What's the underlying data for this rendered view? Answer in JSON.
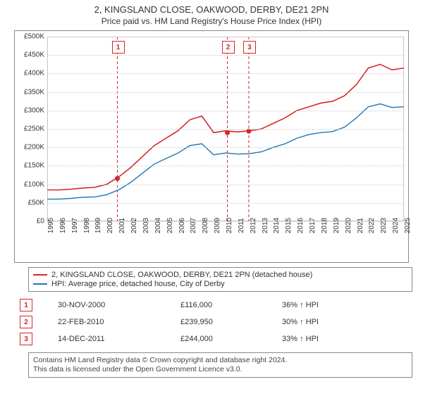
{
  "title_line1": "2, KINGSLAND CLOSE, OAKWOOD, DERBY, DE21 2PN",
  "title_line2": "Price paid vs. HM Land Registry's House Price Index (HPI)",
  "chart": {
    "type": "line",
    "background_color": "#ffffff",
    "grid_color": "#cccccc",
    "border_color": "#888888",
    "x_years": [
      "1995",
      "1996",
      "1997",
      "1998",
      "1999",
      "2000",
      "2001",
      "2002",
      "2003",
      "2004",
      "2005",
      "2006",
      "2007",
      "2008",
      "2009",
      "2010",
      "2011",
      "2012",
      "2013",
      "2014",
      "2015",
      "2016",
      "2017",
      "2018",
      "2019",
      "2020",
      "2021",
      "2022",
      "2023",
      "2024",
      "2025"
    ],
    "x_min": 1995,
    "x_max": 2025,
    "y_ticks": [
      "£0",
      "£50K",
      "£100K",
      "£150K",
      "£200K",
      "£250K",
      "£300K",
      "£350K",
      "£400K",
      "£450K",
      "£500K"
    ],
    "y_min": 0,
    "y_max": 500000,
    "series": [
      {
        "name": "2, KINGSLAND CLOSE, OAKWOOD, DERBY, DE21 2PN (detached house)",
        "color": "#d62728",
        "line_width": 1.6,
        "values": [
          [
            1995,
            85000
          ],
          [
            1996,
            85000
          ],
          [
            1997,
            87000
          ],
          [
            1998,
            90000
          ],
          [
            1999,
            92000
          ],
          [
            2000,
            100000
          ],
          [
            2001,
            120000
          ],
          [
            2002,
            145000
          ],
          [
            2003,
            175000
          ],
          [
            2004,
            205000
          ],
          [
            2005,
            225000
          ],
          [
            2006,
            245000
          ],
          [
            2007,
            275000
          ],
          [
            2008,
            285000
          ],
          [
            2009,
            240000
          ],
          [
            2010,
            245000
          ],
          [
            2011,
            242000
          ],
          [
            2012,
            245000
          ],
          [
            2013,
            250000
          ],
          [
            2014,
            265000
          ],
          [
            2015,
            280000
          ],
          [
            2016,
            300000
          ],
          [
            2017,
            310000
          ],
          [
            2018,
            320000
          ],
          [
            2019,
            325000
          ],
          [
            2020,
            340000
          ],
          [
            2021,
            370000
          ],
          [
            2022,
            415000
          ],
          [
            2023,
            425000
          ],
          [
            2024,
            410000
          ],
          [
            2025,
            415000
          ]
        ]
      },
      {
        "name": "HPI: Average price, detached house, City of Derby",
        "color": "#1f77b4",
        "line_width": 1.4,
        "values": [
          [
            1995,
            60000
          ],
          [
            1996,
            60000
          ],
          [
            1997,
            62000
          ],
          [
            1998,
            65000
          ],
          [
            1999,
            66000
          ],
          [
            2000,
            72000
          ],
          [
            2001,
            85000
          ],
          [
            2002,
            105000
          ],
          [
            2003,
            130000
          ],
          [
            2004,
            155000
          ],
          [
            2005,
            170000
          ],
          [
            2006,
            185000
          ],
          [
            2007,
            205000
          ],
          [
            2008,
            210000
          ],
          [
            2009,
            180000
          ],
          [
            2010,
            185000
          ],
          [
            2011,
            182000
          ],
          [
            2012,
            183000
          ],
          [
            2013,
            188000
          ],
          [
            2014,
            200000
          ],
          [
            2015,
            210000
          ],
          [
            2016,
            225000
          ],
          [
            2017,
            235000
          ],
          [
            2018,
            240000
          ],
          [
            2019,
            243000
          ],
          [
            2020,
            255000
          ],
          [
            2021,
            280000
          ],
          [
            2022,
            310000
          ],
          [
            2023,
            318000
          ],
          [
            2024,
            308000
          ],
          [
            2025,
            310000
          ]
        ]
      }
    ],
    "sale_markers": [
      {
        "n": "1",
        "x": 2000.9,
        "y": 116000
      },
      {
        "n": "2",
        "x": 2010.15,
        "y": 239950
      },
      {
        "n": "3",
        "x": 2011.95,
        "y": 244000
      }
    ],
    "marker_color": "#d62728",
    "marker_line_dash": "4,3"
  },
  "legend": {
    "series1": "2, KINGSLAND CLOSE, OAKWOOD, DERBY, DE21 2PN (detached house)",
    "series2": "HPI: Average price, detached house, City of Derby"
  },
  "sales": [
    {
      "n": "1",
      "date": "30-NOV-2000",
      "price": "£116,000",
      "delta": "36% ↑ HPI"
    },
    {
      "n": "2",
      "date": "22-FEB-2010",
      "price": "£239,950",
      "delta": "30% ↑ HPI"
    },
    {
      "n": "3",
      "date": "14-DEC-2011",
      "price": "£244,000",
      "delta": "33% ↑ HPI"
    }
  ],
  "footer_line1": "Contains HM Land Registry data © Crown copyright and database right 2024.",
  "footer_line2": "This data is licensed under the Open Government Licence v3.0."
}
